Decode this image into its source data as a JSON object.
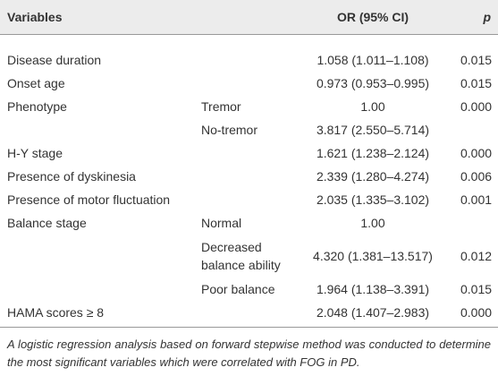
{
  "header": {
    "variables": "Variables",
    "or": "OR (95% CI)",
    "p": "p"
  },
  "table": {
    "rows": [
      {
        "variable": "Disease duration",
        "or": "1.058 (1.011–1.108)",
        "p": "0.015"
      },
      {
        "variable": "Onset age",
        "or": "0.973 (0.953–0.995)",
        "p": "0.015"
      },
      {
        "variable": "Phenotype",
        "subgroup": "Tremor",
        "or": "1.00",
        "p": "0.000"
      },
      {
        "subgroup": "No-tremor",
        "or": "3.817 (2.550–5.714)"
      },
      {
        "variable": "H-Y stage",
        "or": "1.621 (1.238–2.124)",
        "p": "0.000"
      },
      {
        "variable": "Presence of dyskinesia",
        "or": "2.339 (1.280–4.274)",
        "p": "0.006"
      },
      {
        "variable": "Presence of motor fluctuation",
        "or": "2.035 (1.335–3.102)",
        "p": "0.001"
      },
      {
        "variable": "Balance stage",
        "subgroup": "Normal",
        "or": "1.00"
      },
      {
        "subgroup": "Decreased balance ability",
        "or": "4.320 (1.381–13.517)",
        "p": "0.012"
      },
      {
        "subgroup": "Poor balance",
        "or": "1.964 (1.138–3.391)",
        "p": "0.015"
      },
      {
        "variable": "HAMA scores ≥ 8",
        "or": "2.048 (1.407–2.983)",
        "p": "0.000"
      }
    ]
  },
  "footnote": "A logistic regression analysis based on forward stepwise method was conducted to determine the most significant variables which were correlated with FOG in PD."
}
